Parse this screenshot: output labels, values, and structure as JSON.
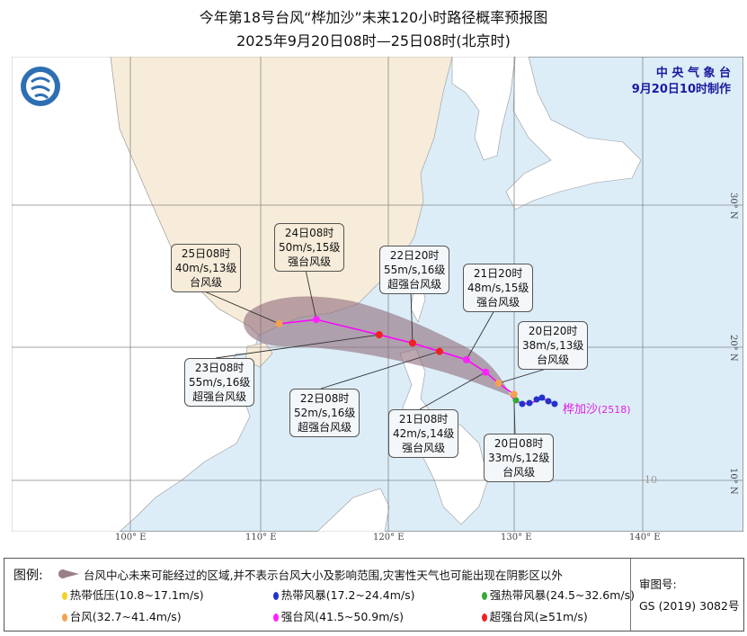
{
  "title": {
    "line1": "今年第18号台风“桦加沙”未来120小时路径概率预报图",
    "line2": "2025年9月20日08时—25日08时(北京时)"
  },
  "agency": {
    "name": "中 央 气 象 台",
    "issued": "9月20日10时制作"
  },
  "typhoon": {
    "name": "桦加沙",
    "code": "(2518)",
    "track_color": "#ff00ff"
  },
  "axes": {
    "lon_ticks": [
      "100° E",
      "110° E",
      "120° E",
      "130° E",
      "140° E"
    ],
    "lat_ticks": [
      "10° N",
      "20° N",
      "30° N"
    ],
    "inner_label": "10"
  },
  "forecast_points": [
    {
      "time": "20日08时",
      "wind": "33m/s,12级",
      "level": "台风级",
      "lon": 129.9,
      "lat": 16.6,
      "color": "#f7a050"
    },
    {
      "time": "20日20时",
      "wind": "38m/s,13级",
      "level": "台风级",
      "lon": 128.7,
      "lat": 17.4,
      "color": "#f7a050"
    },
    {
      "time": "21日08时",
      "wind": "42m/s,14级",
      "level": "强台风级",
      "lon": 127.7,
      "lat": 18.2,
      "color": "#ff22ff"
    },
    {
      "time": "21日20时",
      "wind": "48m/s,15级",
      "level": "强台风级",
      "lon": 126.2,
      "lat": 19.1,
      "color": "#ff22ff"
    },
    {
      "time": "22日08时",
      "wind": "52m/s,16级",
      "level": "超强台风级",
      "lon": 124.1,
      "lat": 19.7,
      "color": "#ee2222"
    },
    {
      "time": "22日20时",
      "wind": "55m/s,16级",
      "level": "超强台风级",
      "lon": 122.0,
      "lat": 20.3,
      "color": "#ee2222"
    },
    {
      "time": "23日08时",
      "wind": "55m/s,16级",
      "level": "超强台风级",
      "lon": 119.4,
      "lat": 20.9,
      "color": "#ee2222"
    },
    {
      "time": "24日08时",
      "wind": "50m/s,15级",
      "level": "强台风级",
      "lon": 114.5,
      "lat": 22.0,
      "color": "#ff22ff"
    },
    {
      "time": "25日08时",
      "wind": "40m/s,13级",
      "level": "台风级",
      "lon": 111.6,
      "lat": 21.7,
      "color": "#f7a050"
    }
  ],
  "legend": {
    "title": "图例:",
    "cone": "台风中心未来可能经过的区域,并不表示台风大小及影响范围,灾害性天气也可能出现在阴影区以外",
    "cone_color": "#9a7f8a",
    "categories": [
      {
        "label": "热带低压(10.8~17.1m/s)",
        "color": "#f2d02a"
      },
      {
        "label": "热带风暴(17.2~24.4m/s)",
        "color": "#2233cc"
      },
      {
        "label": "强热带风暴(24.5~32.6m/s)",
        "color": "#33aa33"
      },
      {
        "label": "台风(32.7~41.4m/s)",
        "color": "#f7a050"
      },
      {
        "label": "强台风(41.5~50.9m/s)",
        "color": "#ff22ff"
      },
      {
        "label": "超强台风(≥51m/s)",
        "color": "#ee2222"
      }
    ],
    "review_label": "审图号:",
    "review_number": "GS (2019) 3082号"
  },
  "colors": {
    "sea": "#dcedf8",
    "china": "#f7ecd9",
    "other_land": "#ffffff"
  }
}
